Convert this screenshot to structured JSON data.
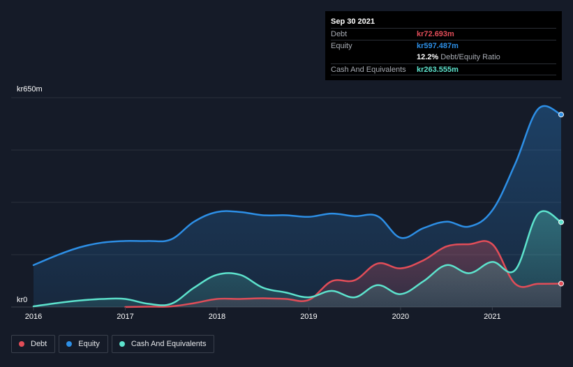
{
  "colors": {
    "debt": "#e24d58",
    "equity": "#2d8fe6",
    "cash": "#5de3cd",
    "background": "#151b28"
  },
  "tooltip": {
    "date": "Sep 30 2021",
    "debt_label": "Debt",
    "debt_value": "kr72.693m",
    "equity_label": "Equity",
    "equity_value": "kr597.487m",
    "ratio_value": "12.2%",
    "ratio_label": "Debt/Equity Ratio",
    "cash_label": "Cash And Equivalents",
    "cash_value": "kr263.555m"
  },
  "legend": [
    {
      "name": "Debt",
      "color": "#e24d58"
    },
    {
      "name": "Equity",
      "color": "#2d8fe6"
    },
    {
      "name": "Cash And Equivalents",
      "color": "#5de3cd"
    }
  ],
  "chart_data": {
    "type": "area",
    "y_max_label": "kr650m",
    "y_min_label": "kr0",
    "ylim": [
      0,
      650
    ],
    "xlim": [
      2016.0,
      2021.75
    ],
    "x_ticks": [
      "2016",
      "2017",
      "2018",
      "2019",
      "2020",
      "2021"
    ],
    "grid": true,
    "legend_position": "bottom-left",
    "series": [
      {
        "name": "Equity",
        "x": [
          2016.0,
          2016.25,
          2016.5,
          2016.75,
          2017.0,
          2017.25,
          2017.5,
          2017.75,
          2018.0,
          2018.25,
          2018.5,
          2018.75,
          2019.0,
          2019.25,
          2019.5,
          2019.75,
          2020.0,
          2020.25,
          2020.5,
          2020.75,
          2021.0,
          2021.25,
          2021.5,
          2021.75
        ],
        "values": [
          130,
          160,
          185,
          200,
          205,
          205,
          210,
          265,
          295,
          295,
          285,
          285,
          280,
          290,
          282,
          282,
          215,
          245,
          265,
          250,
          300,
          445,
          615,
          597.5
        ]
      },
      {
        "name": "Debt",
        "x": [
          2017.0,
          2017.25,
          2017.5,
          2017.75,
          2018.0,
          2018.25,
          2018.5,
          2018.75,
          2019.0,
          2019.25,
          2019.5,
          2019.75,
          2020.0,
          2020.25,
          2020.5,
          2020.75,
          2021.0,
          2021.25,
          2021.5,
          2021.75
        ],
        "values": [
          0,
          1,
          2,
          12,
          25,
          25,
          27,
          25,
          22,
          80,
          83,
          135,
          120,
          145,
          188,
          195,
          195,
          72,
          72,
          72.7
        ]
      },
      {
        "name": "Cash And Equivalents",
        "x": [
          2016.0,
          2016.25,
          2016.5,
          2016.75,
          2017.0,
          2017.25,
          2017.5,
          2017.75,
          2018.0,
          2018.25,
          2018.5,
          2018.75,
          2019.0,
          2019.25,
          2019.5,
          2019.75,
          2020.0,
          2020.25,
          2020.5,
          2020.75,
          2021.0,
          2021.25,
          2021.5,
          2021.75
        ],
        "values": [
          2,
          12,
          20,
          25,
          25,
          10,
          10,
          60,
          100,
          100,
          60,
          45,
          30,
          50,
          30,
          68,
          40,
          80,
          130,
          105,
          140,
          115,
          290,
          263.6
        ]
      }
    ]
  }
}
